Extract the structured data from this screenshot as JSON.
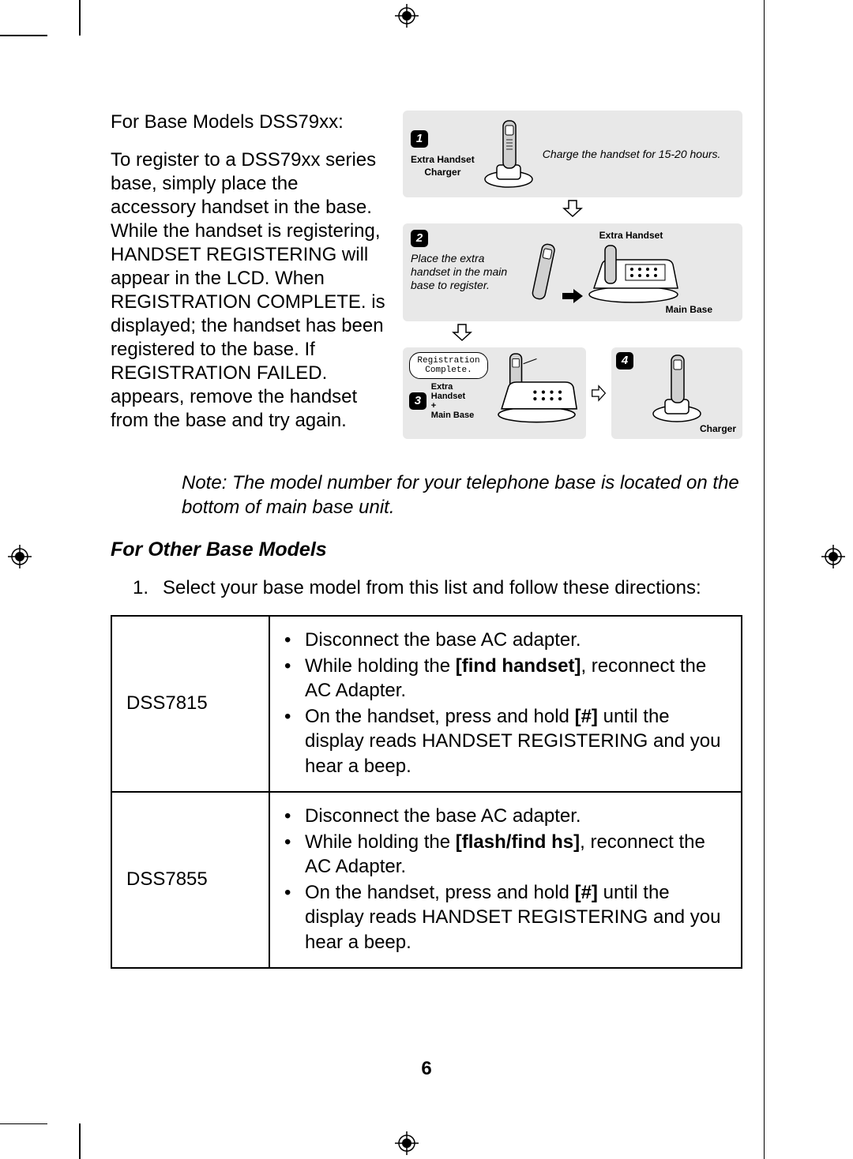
{
  "header": {
    "title_line": "For Base Models DSS79xx:",
    "body": "To register to a DSS79xx series base, simply place the accessory handset in the base. While the handset is registering, HANDSET REGISTERING will appear in the LCD. When REGISTRATION COMPLETE. is displayed; the handset has been registered to the base. If REGISTRATION FAILED. appears, remove the handset from the base and try again."
  },
  "diagram": {
    "step1": {
      "num": "1",
      "label_extra": "Extra Handset",
      "label_charger": "Charger",
      "instruction": "Charge the handset for 15-20 hours."
    },
    "step2": {
      "num": "2",
      "label_extra": "Extra Handset",
      "label_base": "Main Base",
      "instruction": "Place the extra handset in the main base to register."
    },
    "step3": {
      "num": "3",
      "lcd_line1": "Registration",
      "lcd_line2": "Complete.",
      "label_extra_base": "Extra Handset\n+\nMain Base"
    },
    "step4": {
      "num": "4",
      "label_charger": "Charger"
    }
  },
  "note": "Note: The model number for your telephone base is located on the bottom of main base unit.",
  "section2": {
    "title": "For Other Base Models",
    "list_num": "1.",
    "list_text": "Select your base model from this list and follow these directions:"
  },
  "table": {
    "rows": [
      {
        "model": "DSS7815",
        "bullets": [
          {
            "pre": "Disconnect the base AC adapter."
          },
          {
            "pre": "While holding the ",
            "bold": "[find handset]",
            "post": ", reconnect the AC Adapter."
          },
          {
            "pre": "On the handset, press and hold ",
            "bold": "[#]",
            "post": " until the display reads HANDSET REGISTERING and you hear a beep."
          }
        ]
      },
      {
        "model": "DSS7855",
        "bullets": [
          {
            "pre": "Disconnect the base AC adapter."
          },
          {
            "pre": "While holding the ",
            "bold": "[flash/find hs]",
            "post": ", reconnect the AC Adapter."
          },
          {
            "pre": "On the handset, press and hold ",
            "bold": "[#]",
            "post": " until the display reads HANDSET REGISTERING and you hear a beep."
          }
        ]
      }
    ]
  },
  "page_number": "6",
  "colors": {
    "panel_bg": "#e8e8e8",
    "text": "#000000",
    "bg": "#ffffff"
  }
}
